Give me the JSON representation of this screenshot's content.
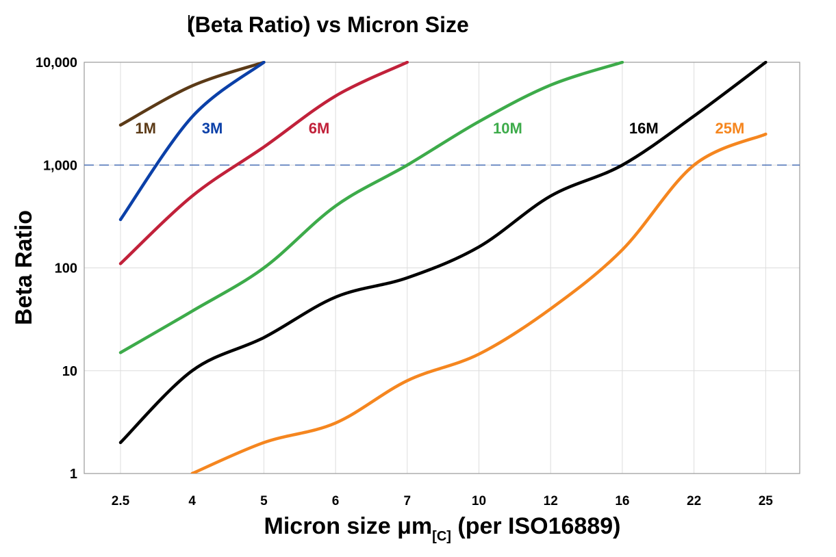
{
  "chart_data": {
    "type": "line",
    "title": "(Beta Ratio) vs Micron Size",
    "xlabel": {
      "main": "Micron size μm",
      "subscript": "[C]",
      "suffix": " (per ISO16889)"
    },
    "ylabel": "Beta Ratio",
    "x_scale": "categorical",
    "y_scale": "log",
    "ylim": [
      1,
      10000
    ],
    "grid": true,
    "categories": [
      "2.5",
      "4",
      "5",
      "6",
      "7",
      "10",
      "12",
      "16",
      "22",
      "25"
    ],
    "y_ticks": [
      {
        "value": 1,
        "label": "1"
      },
      {
        "value": 10,
        "label": "10"
      },
      {
        "value": 100,
        "label": "100"
      },
      {
        "value": 1000,
        "label": "1,000"
      },
      {
        "value": 10000,
        "label": "10,000"
      }
    ],
    "reference_line": {
      "y": 1000,
      "style": "dashed",
      "color": "#4a6fb5"
    },
    "series": [
      {
        "name": "1M",
        "color": "#5b3a17",
        "values": [
          2450,
          5900,
          10000,
          null,
          null,
          null,
          null,
          null,
          null,
          null
        ]
      },
      {
        "name": "3M",
        "color": "#0b40a8",
        "values": [
          295,
          2950,
          10000,
          null,
          null,
          null,
          null,
          null,
          null,
          null
        ]
      },
      {
        "name": "6M",
        "color": "#c1213a",
        "values": [
          110,
          500,
          1500,
          4700,
          10000,
          null,
          null,
          null,
          null,
          null
        ]
      },
      {
        "name": "10M",
        "color": "#3dab4a",
        "values": [
          15,
          38,
          100,
          400,
          1000,
          2650,
          6000,
          10000,
          null,
          null
        ]
      },
      {
        "name": "16M",
        "color": "#000000",
        "values": [
          2,
          10,
          21,
          52,
          80,
          160,
          500,
          1000,
          3000,
          10000
        ]
      },
      {
        "name": "25M",
        "color": "#f5861f",
        "values": [
          null,
          1,
          2,
          3.1,
          8,
          14.5,
          40,
          150,
          1000,
          2000
        ]
      }
    ]
  }
}
